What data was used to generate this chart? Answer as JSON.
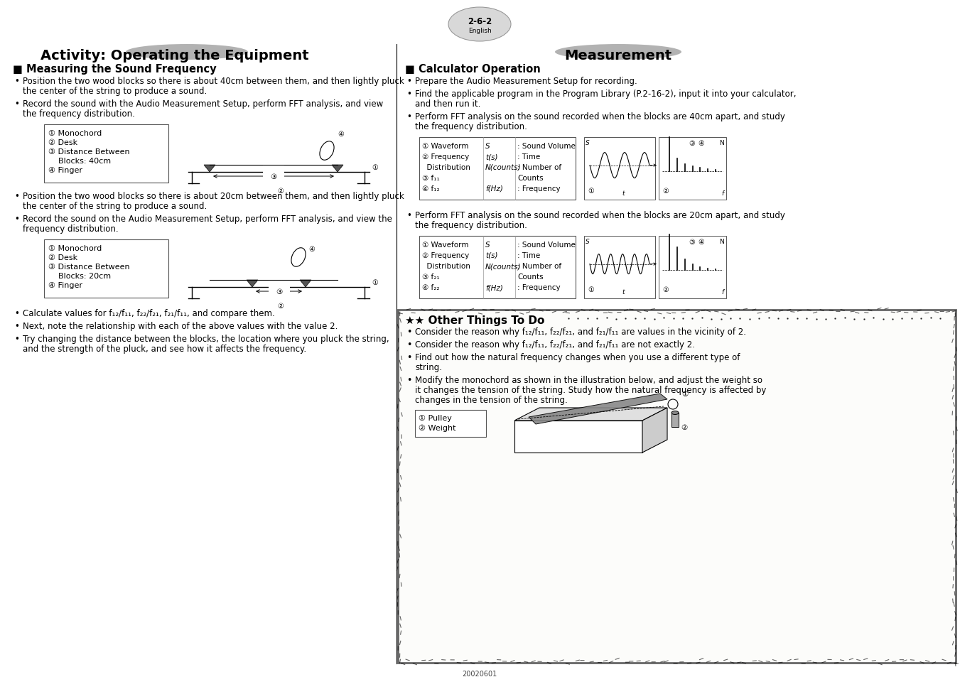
{
  "bg_color": "#ffffff",
  "title_left": "Activity: Operating the Equipment",
  "title_right": "Measurement",
  "page_label": "2-6-2",
  "page_sublabel": "English",
  "section1_title": "■ Measuring the Sound Frequency",
  "s1_b1_line1": "Position the two wood blocks so there is about 40cm between them, and then lightly pluck",
  "s1_b1_line2": "the center of the string to produce a sound.",
  "s1_b2_line1": "Record the sound with the Audio Measurement Setup, perform FFT analysis, and view",
  "s1_b2_line2": "the frequency distribution.",
  "box1_items": [
    "① Monochord",
    "② Desk",
    "③ Distance Between",
    "    Blocks: 40cm",
    "④ Finger"
  ],
  "s1b_b1_line1": "Position the two wood blocks so there is about 20cm between them, and then lightly pluck",
  "s1b_b1_line2": "the center of the string to produce a sound.",
  "s1b_b2_line1": "Record the sound on the Audio Measurement Setup, perform FFT analysis, and view the",
  "s1b_b2_line2": "frequency distribution.",
  "box2_items": [
    "① Monochord",
    "② Desk",
    "③ Distance Between",
    "    Blocks: 20cm",
    "④ Finger"
  ],
  "s1c_bullets": [
    "Calculate values for f₁₂/f₁₁, f₂₂/f₂₁, f₂₁/f₁₁, and compare them.",
    "Next, note the relationship with each of the above values with the value 2.",
    "Try changing the distance between the blocks, the location where you pluck the string,",
    "and the strength of the pluck, and see how it affects the frequency."
  ],
  "section2_title": "■ Calculator Operation",
  "s2_b1": "Prepare the Audio Measurement Setup for recording.",
  "s2_b2_line1": "Find the applicable program in the Program Library (P.2-16-2), input it into your calculator,",
  "s2_b2_line2": "and then run it.",
  "s2_b3_line1": "Perform FFT analysis on the sound recorded when the blocks are 40cm apart, and study",
  "s2_b3_line2": "the frequency distribution.",
  "tbl1_r1": [
    "① Waveform",
    "S",
    ": Sound Volume"
  ],
  "tbl1_r2": [
    "② Frequency",
    "t(s)",
    ": Time"
  ],
  "tbl1_r2b": [
    "  Distribution",
    "N(counts)",
    ": Number of"
  ],
  "tbl1_r3": [
    "③ f₁₁",
    "",
    "Counts"
  ],
  "tbl1_r4": [
    "④ f₁₂",
    "f(Hz)",
    ": Frequency"
  ],
  "s2b_b1_line1": "Perform FFT analysis on the sound recorded when the blocks are 20cm apart, and study",
  "s2b_b1_line2": "the frequency distribution.",
  "tbl2_r1": [
    "① Waveform",
    "S",
    ": Sound Volume"
  ],
  "tbl2_r2": [
    "② Frequency",
    "t(s)",
    ": Time"
  ],
  "tbl2_r2b": [
    "  Distribution",
    "N(counts)",
    ": Number of"
  ],
  "tbl2_r3": [
    "③ f₂₁",
    "",
    "Counts"
  ],
  "tbl2_r4": [
    "④ f₂₂",
    "f(Hz)",
    ": Frequency"
  ],
  "other_title": "Other Things To Do",
  "other_b1": "Consider the reason why f₁₂/f₁₁, f₂₂/f₂₁, and f₂₁/f₁₁ are values in the vicinity of 2.",
  "other_b2": "Consider the reason why f₁₂/f₁₁, f₂₂/f₂₁, and f₂₁/f₁₁ are not exactly 2.",
  "other_b3_line1": "Find out how the natural frequency changes when you use a different type of",
  "other_b3_line2": "string.",
  "other_b4_line1": "Modify the monochord as shown in the illustration below, and adjust the weight so",
  "other_b4_line2": "it changes the tension of the string. Study how the natural frequency is affected by",
  "other_b4_line3": "changes in the tension of the string.",
  "other_box_items": [
    "① Pulley",
    "② Weight"
  ],
  "footer": "20020601"
}
